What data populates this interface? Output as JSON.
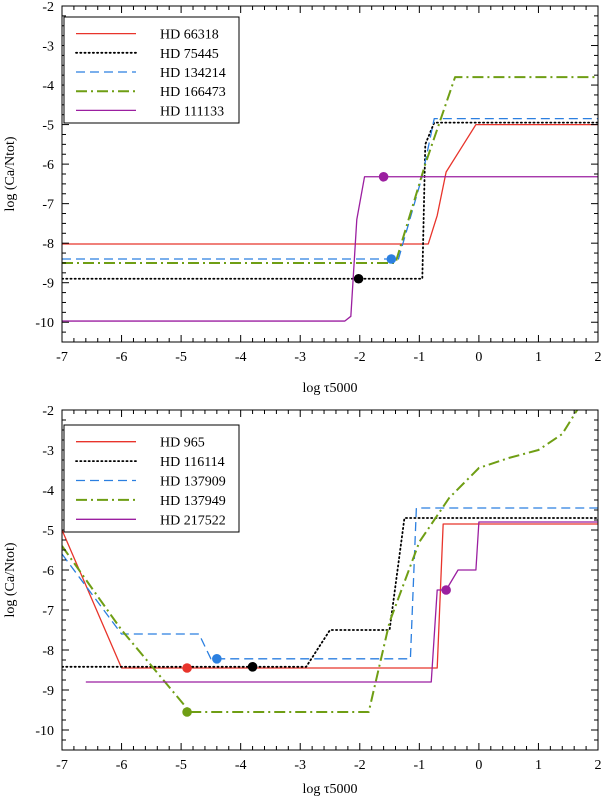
{
  "chart_data": [
    {
      "type": "line",
      "xlabel": "log τ5000",
      "ylabel": "log (Ca/Ntot)",
      "xlim": [
        -7,
        2
      ],
      "ylim": [
        -10.5,
        -2
      ],
      "xticks": [
        -7,
        -6,
        -5,
        -4,
        -3,
        -2,
        -1,
        0,
        1,
        2
      ],
      "yticks": [
        -10,
        -9,
        -8,
        -7,
        -6,
        -5,
        -4,
        -3,
        -2
      ],
      "legend_position": "top-left",
      "series": [
        {
          "name": "HD 66318",
          "color": "#e8342b",
          "dash": "solid",
          "x": [
            -7,
            -0.85,
            -0.7,
            -0.55,
            -0.3,
            -0.05,
            2
          ],
          "y": [
            -8.02,
            -8.02,
            -7.3,
            -6.2,
            -5.6,
            -5.0,
            -5.0
          ],
          "marker": null
        },
        {
          "name": "HD 75445",
          "color": "#000000",
          "dash": "dotted",
          "x": [
            -7,
            -0.95,
            -0.9,
            -0.75,
            2
          ],
          "y": [
            -8.9,
            -8.9,
            -5.5,
            -4.95,
            -4.95
          ],
          "marker": {
            "x": -2.02,
            "y": -8.9
          }
        },
        {
          "name": "HD 134214",
          "color": "#2b7fe0",
          "dash": "dashed",
          "x": [
            -7,
            -1.35,
            -0.95,
            -0.75,
            2
          ],
          "y": [
            -8.4,
            -8.4,
            -6.3,
            -4.85,
            -4.85
          ],
          "marker": {
            "x": -1.47,
            "y": -8.4
          }
        },
        {
          "name": "HD 166473",
          "color": "#6f9e14",
          "dash": "dashdot",
          "x": [
            -7,
            -1.4,
            -0.9,
            -0.4,
            -0.3,
            2
          ],
          "y": [
            -8.5,
            -8.5,
            -6.0,
            -3.8,
            -3.8,
            -3.8
          ],
          "marker": null
        },
        {
          "name": "HD 111133",
          "color": "#9b1fa0",
          "dash": "solid",
          "x": [
            -7,
            -2.25,
            -2.15,
            -2.05,
            -1.92,
            2
          ],
          "y": [
            -9.97,
            -9.97,
            -9.85,
            -7.4,
            -6.32,
            -6.32
          ],
          "marker": {
            "x": -1.6,
            "y": -6.32
          }
        }
      ]
    },
    {
      "type": "line",
      "xlabel": "log τ5000",
      "ylabel": "log (Ca/Ntot)",
      "xlim": [
        -7,
        2
      ],
      "ylim": [
        -10.5,
        -2
      ],
      "xticks": [
        -7,
        -6,
        -5,
        -4,
        -3,
        -2,
        -1,
        0,
        1,
        2
      ],
      "yticks": [
        -10,
        -9,
        -8,
        -7,
        -6,
        -5,
        -4,
        -3,
        -2
      ],
      "legend_position": "top-left",
      "series": [
        {
          "name": "HD 965",
          "color": "#e8342b",
          "dash": "solid",
          "x": [
            -7,
            -6.0,
            -0.7,
            -0.6,
            2
          ],
          "y": [
            -5.0,
            -8.45,
            -8.45,
            -4.85,
            -4.85
          ],
          "marker": {
            "x": -4.9,
            "y": -8.45
          }
        },
        {
          "name": "HD 116114",
          "color": "#000000",
          "dash": "dotted",
          "x": [
            -7,
            -2.9,
            -2.5,
            -1.5,
            -1.25,
            -1.0,
            2
          ],
          "y": [
            -8.42,
            -8.42,
            -7.5,
            -7.5,
            -4.7,
            -4.7,
            -4.7
          ],
          "marker": {
            "x": -3.8,
            "y": -8.42
          }
        },
        {
          "name": "HD 137909",
          "color": "#2b7fe0",
          "dash": "dashed",
          "x": [
            -7,
            -6.0,
            -4.7,
            -4.5,
            -1.15,
            -1.05,
            2
          ],
          "y": [
            -5.6,
            -7.6,
            -7.6,
            -8.22,
            -8.22,
            -4.45,
            -4.45
          ],
          "marker": {
            "x": -4.4,
            "y": -8.22
          }
        },
        {
          "name": "HD 137949",
          "color": "#6f9e14",
          "dash": "dashdot",
          "x": [
            -7,
            -6.0,
            -4.85,
            -1.85,
            -1.5,
            -1.0,
            -0.5,
            0.0,
            0.5,
            1.0,
            1.4,
            1.65
          ],
          "y": [
            -5.4,
            -7.5,
            -9.55,
            -9.55,
            -7.3,
            -5.3,
            -4.2,
            -3.45,
            -3.2,
            -3.0,
            -2.6,
            -2.0
          ],
          "marker": {
            "x": -4.9,
            "y": -9.55
          }
        },
        {
          "name": "HD 217522",
          "color": "#9b1fa0",
          "dash": "solid",
          "x": [
            -6.6,
            -0.8,
            -0.7,
            -0.55,
            -0.35,
            -0.05,
            0.0,
            2
          ],
          "y": [
            -8.8,
            -8.8,
            -6.5,
            -6.5,
            -6.0,
            -6.0,
            -4.8,
            -4.8
          ],
          "marker": {
            "x": -0.55,
            "y": -6.5
          }
        }
      ]
    }
  ]
}
